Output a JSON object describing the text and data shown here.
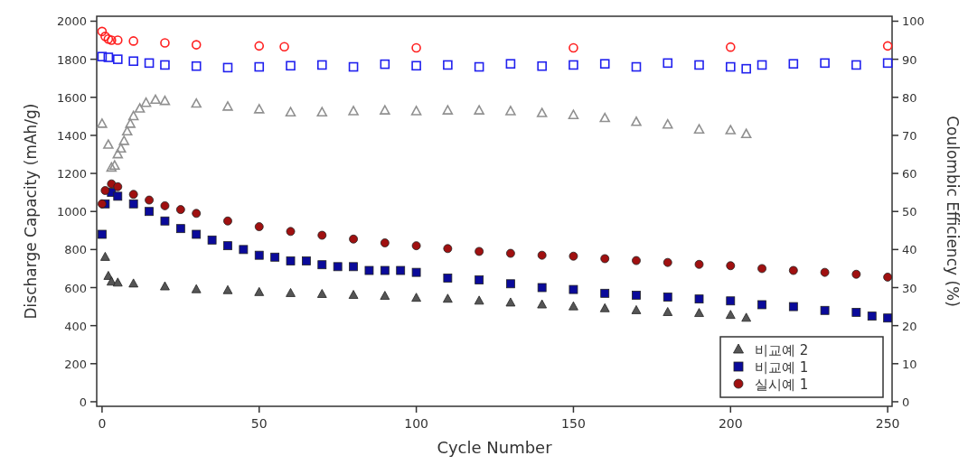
{
  "chart_data": {
    "type": "scatter",
    "xlabel": "Cycle Number",
    "ylabel": "Discharge Capacity (mAh/g)",
    "y2label": "Coulombic Efficiency (%)",
    "xlim": [
      -1.7,
      251.4
    ],
    "xticks": [
      0,
      50,
      100,
      150,
      200,
      250
    ],
    "ylim": [
      -24,
      2026
    ],
    "yticks": [
      0,
      200,
      400,
      600,
      800,
      1000,
      1200,
      1400,
      1600,
      1800,
      2000
    ],
    "y2lim": [
      -1.2,
      101.3
    ],
    "y2ticks": [
      0,
      10,
      20,
      30,
      40,
      50,
      60,
      70,
      80,
      90,
      100
    ],
    "legend": "bottom right",
    "grid": false,
    "series": [
      {
        "name": "비교예 2",
        "color": "#555555",
        "marker": "triangle",
        "x": [
          1,
          2,
          3,
          5,
          10,
          20,
          30,
          40,
          50,
          60,
          70,
          80,
          90,
          100,
          110,
          120,
          130,
          140,
          150,
          160,
          170,
          180,
          190,
          200,
          205
        ],
        "values": [
          760,
          660,
          630,
          625,
          620,
          605,
          590,
          585,
          575,
          570,
          565,
          560,
          555,
          545,
          540,
          530,
          520,
          510,
          500,
          490,
          480,
          470,
          465,
          455,
          440
        ]
      },
      {
        "name": "비교예 1",
        "color": "#0a0a9a",
        "marker": "square",
        "x": [
          0,
          1,
          3,
          5,
          10,
          15,
          20,
          25,
          30,
          35,
          40,
          45,
          50,
          55,
          60,
          65,
          70,
          75,
          80,
          85,
          90,
          95,
          100,
          110,
          120,
          130,
          140,
          150,
          160,
          170,
          180,
          190,
          200,
          210,
          220,
          230,
          240,
          245,
          250
        ],
        "values": [
          880,
          1040,
          1100,
          1080,
          1040,
          1000,
          950,
          910,
          880,
          850,
          820,
          800,
          770,
          760,
          740,
          740,
          720,
          710,
          710,
          690,
          690,
          690,
          680,
          650,
          640,
          620,
          600,
          590,
          570,
          560,
          550,
          540,
          530,
          510,
          500,
          480,
          470,
          450,
          440
        ]
      },
      {
        "name": "실시예 1",
        "color": "#a01010",
        "marker": "circle",
        "x": [
          0,
          1,
          3,
          5,
          10,
          15,
          20,
          25,
          30,
          40,
          50,
          60,
          70,
          80,
          90,
          100,
          110,
          120,
          130,
          140,
          150,
          160,
          170,
          180,
          190,
          200,
          210,
          220,
          230,
          240,
          250
        ],
        "values": [
          1040,
          1110,
          1145,
          1130,
          1090,
          1060,
          1030,
          1010,
          990,
          950,
          920,
          895,
          875,
          855,
          835,
          820,
          805,
          790,
          780,
          770,
          765,
          752,
          742,
          732,
          722,
          715,
          700,
          690,
          680,
          670,
          655
        ]
      },
      {
        "color": "#909090",
        "marker": "triangle",
        "axis": "y2",
        "x": [
          0,
          2,
          3,
          4,
          5,
          6,
          7,
          8,
          9,
          10,
          12,
          14,
          17,
          20,
          30,
          40,
          50,
          60,
          70,
          80,
          90,
          100,
          110,
          120,
          130,
          140,
          150,
          160,
          170,
          180,
          190,
          200,
          205
        ],
        "values": [
          73,
          67.5,
          61.5,
          62,
          65,
          66.5,
          68.5,
          71,
          73,
          75,
          77,
          78.5,
          79.3,
          79,
          78.3,
          77.5,
          76.8,
          76,
          76,
          76.3,
          76.5,
          76.3,
          76.5,
          76.5,
          76.3,
          75.8,
          75.3,
          74.5,
          73.5,
          72.8,
          71.5,
          71.3,
          70.3
        ]
      },
      {
        "color": "#2020ee",
        "marker": "square",
        "axis": "y2",
        "x": [
          0,
          2,
          5,
          10,
          15,
          20,
          30,
          40,
          50,
          60,
          70,
          80,
          90,
          100,
          110,
          120,
          130,
          140,
          150,
          160,
          170,
          180,
          190,
          200,
          205,
          210,
          220,
          230,
          240,
          250
        ],
        "values": [
          90.7,
          90.5,
          90,
          89.5,
          89,
          88.5,
          88.2,
          87.8,
          88,
          88.3,
          88.5,
          88,
          88.7,
          88.3,
          88.5,
          88,
          88.8,
          88.2,
          88.5,
          88.8,
          88,
          89,
          88.5,
          88,
          87.5,
          88.5,
          88.8,
          89,
          88.5,
          89
        ]
      },
      {
        "color": "#ff2020",
        "marker": "circle",
        "axis": "y2",
        "x": [
          0,
          1,
          2,
          3,
          5,
          10,
          20,
          30,
          50,
          58,
          100,
          150,
          200,
          250
        ],
        "values": [
          97.3,
          96,
          95.3,
          95,
          95,
          94.8,
          94.3,
          93.8,
          93.5,
          93.3,
          93,
          93,
          93.2,
          93.5
        ]
      }
    ]
  }
}
